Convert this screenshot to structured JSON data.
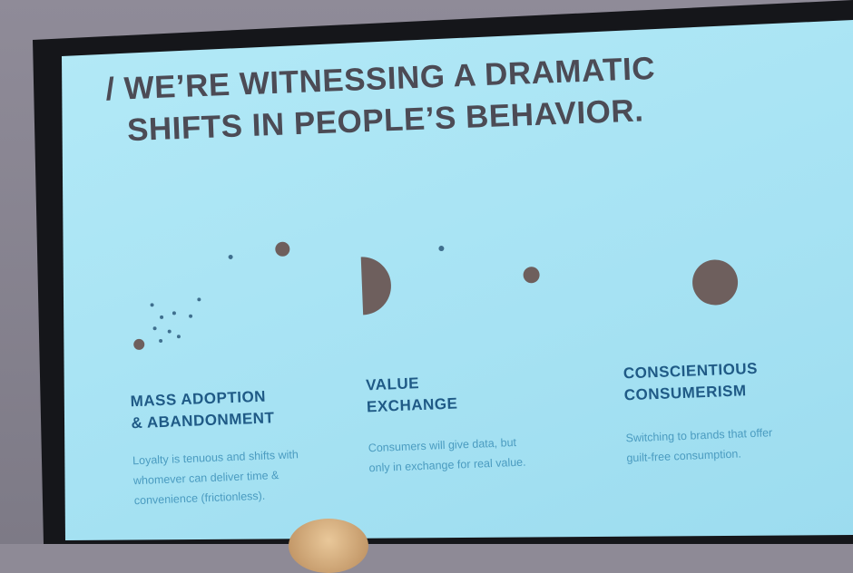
{
  "slide": {
    "title_slash": "/",
    "title_line1": "WE’RE WITNESSING A DRAMATIC",
    "title_line2": "SHIFTS IN PEOPLE’S BEHAVIOR.",
    "columns": [
      {
        "heading_line1": "MASS ADOPTION",
        "heading_line2": "& ABANDONMENT",
        "body_line1": "Loyalty is tenuous and shifts with",
        "body_line2": "whomever can deliver time &",
        "body_line3": "convenience (frictionless)."
      },
      {
        "heading_line1": "VALUE",
        "heading_line2": "EXCHANGE",
        "body_line1": "Consumers will give data, but",
        "body_line2": "only in exchange for real value."
      },
      {
        "heading_line1": "CONSCIENTIOUS",
        "heading_line2": "CONSUMERISM",
        "body_line1": "Switching to brands that offer",
        "body_line2": "guilt-free consumption."
      }
    ],
    "colors": {
      "background": "#a8e4f4",
      "title": "#4c4b55",
      "heading": "#1f5a86",
      "body": "#4a9bc0",
      "shapes": "#6e5f5d"
    }
  }
}
